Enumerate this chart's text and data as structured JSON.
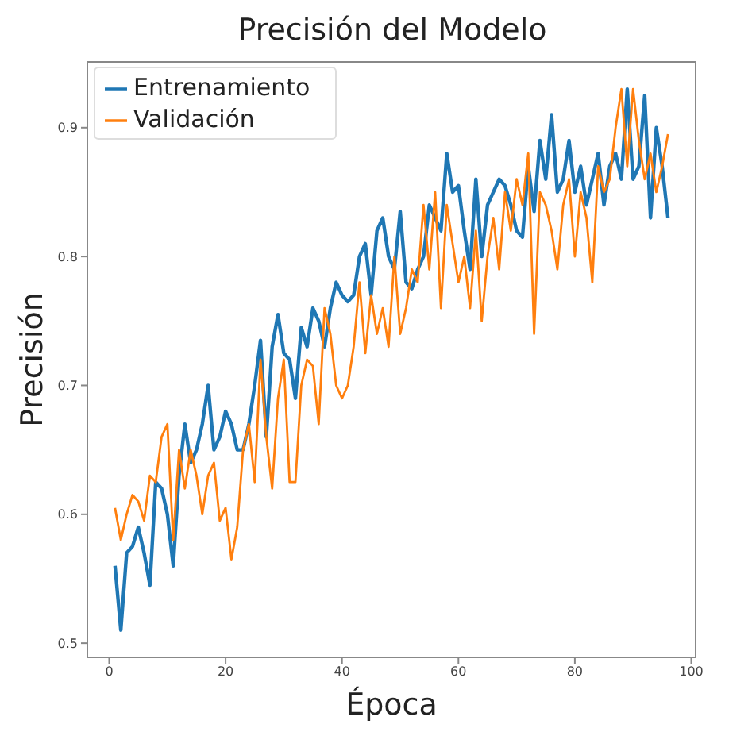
{
  "chart_data": {
    "type": "line",
    "title": "Precisión del Modelo",
    "xlabel": "Época",
    "ylabel": "Precisión",
    "x": [
      1,
      2,
      3,
      4,
      5,
      6,
      7,
      8,
      9,
      10,
      11,
      12,
      13,
      14,
      15,
      16,
      17,
      18,
      19,
      20,
      21,
      22,
      23,
      24,
      25,
      26,
      27,
      28,
      29,
      30,
      31,
      32,
      33,
      34,
      35,
      36,
      37,
      38,
      39,
      40,
      41,
      42,
      43,
      44,
      45,
      46,
      47,
      48,
      49,
      50,
      51,
      52,
      53,
      54,
      55,
      56,
      57,
      58,
      59,
      60,
      61,
      62,
      63,
      64,
      65,
      66,
      67,
      68,
      69,
      70,
      71,
      72,
      73,
      74,
      75,
      76,
      77,
      78,
      79,
      80,
      81,
      82,
      83,
      84,
      85,
      86,
      87,
      88,
      89,
      90,
      91,
      92,
      93,
      94,
      95,
      96
    ],
    "series": [
      {
        "name": "Entrenamiento",
        "color": "#1f77b4",
        "values": [
          0.56,
          0.51,
          0.57,
          0.575,
          0.59,
          0.57,
          0.545,
          0.625,
          0.62,
          0.6,
          0.56,
          0.63,
          0.67,
          0.64,
          0.65,
          0.67,
          0.7,
          0.65,
          0.66,
          0.68,
          0.67,
          0.65,
          0.65,
          0.67,
          0.7,
          0.735,
          0.66,
          0.73,
          0.755,
          0.725,
          0.72,
          0.69,
          0.745,
          0.73,
          0.76,
          0.75,
          0.73,
          0.76,
          0.78,
          0.77,
          0.765,
          0.77,
          0.8,
          0.81,
          0.77,
          0.82,
          0.83,
          0.8,
          0.79,
          0.835,
          0.78,
          0.775,
          0.79,
          0.8,
          0.84,
          0.83,
          0.82,
          0.88,
          0.85,
          0.855,
          0.82,
          0.79,
          0.86,
          0.8,
          0.84,
          0.85,
          0.86,
          0.855,
          0.84,
          0.82,
          0.815,
          0.87,
          0.835,
          0.89,
          0.86,
          0.91,
          0.85,
          0.86,
          0.89,
          0.85,
          0.87,
          0.84,
          0.86,
          0.88,
          0.84,
          0.87,
          0.88,
          0.86,
          0.93,
          0.86,
          0.87,
          0.925,
          0.83,
          0.9,
          0.87,
          0.83
        ]
      },
      {
        "name": "Validación",
        "color": "#ff7f0e",
        "values": [
          0.605,
          0.58,
          0.6,
          0.615,
          0.61,
          0.595,
          0.63,
          0.625,
          0.66,
          0.67,
          0.58,
          0.65,
          0.62,
          0.65,
          0.63,
          0.6,
          0.63,
          0.64,
          0.595,
          0.605,
          0.565,
          0.59,
          0.65,
          0.67,
          0.625,
          0.72,
          0.66,
          0.62,
          0.69,
          0.72,
          0.625,
          0.625,
          0.7,
          0.72,
          0.715,
          0.67,
          0.76,
          0.74,
          0.7,
          0.69,
          0.7,
          0.73,
          0.78,
          0.725,
          0.77,
          0.74,
          0.76,
          0.73,
          0.8,
          0.74,
          0.76,
          0.79,
          0.78,
          0.84,
          0.79,
          0.85,
          0.76,
          0.84,
          0.81,
          0.78,
          0.8,
          0.76,
          0.82,
          0.75,
          0.8,
          0.83,
          0.79,
          0.85,
          0.82,
          0.86,
          0.84,
          0.88,
          0.74,
          0.85,
          0.84,
          0.82,
          0.79,
          0.84,
          0.86,
          0.8,
          0.85,
          0.83,
          0.78,
          0.87,
          0.85,
          0.86,
          0.9,
          0.93,
          0.87,
          0.93,
          0.89,
          0.86,
          0.88,
          0.85,
          0.87,
          0.895
        ]
      }
    ],
    "xlim": [
      -3.75,
      100.75
    ],
    "xticks": [
      0,
      20,
      40,
      60,
      80,
      100
    ],
    "ylim": [
      0.489,
      0.951
    ],
    "yticks": [
      0.5,
      0.6,
      0.7,
      0.8,
      0.9
    ],
    "grid": false,
    "legend": "top left",
    "marker": "none",
    "line_style": "solid"
  }
}
